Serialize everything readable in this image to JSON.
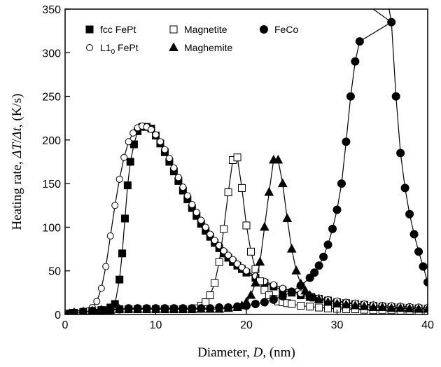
{
  "chart_data": {
    "type": "scatter",
    "xlabel": "Diameter, D, (nm)",
    "ylabel": "Heating rate, ΔT/Δt, (K/s)",
    "xlim": [
      0,
      40
    ],
    "ylim": [
      0,
      350
    ],
    "x_ticks": [
      0,
      10,
      20,
      30,
      40
    ],
    "y_ticks": [
      0,
      50,
      100,
      150,
      200,
      250,
      300,
      350
    ],
    "grid": false,
    "legend_position": "top-left",
    "series": [
      {
        "name": "fcc FePt",
        "marker": "filled-square",
        "points": [
          [
            0.5,
            0.1
          ],
          [
            1,
            0.2
          ],
          [
            1.5,
            0.3
          ],
          [
            2,
            0.5
          ],
          [
            2.5,
            0.8
          ],
          [
            3,
            1.2
          ],
          [
            3.5,
            2
          ],
          [
            4,
            3
          ],
          [
            4.5,
            5
          ],
          [
            5,
            8
          ],
          [
            5.5,
            12
          ],
          [
            6,
            40
          ],
          [
            6.3,
            70
          ],
          [
            6.6,
            110
          ],
          [
            6.9,
            148
          ],
          [
            7.2,
            175
          ],
          [
            7.6,
            195
          ],
          [
            8,
            210
          ],
          [
            8.5,
            215
          ],
          [
            9,
            215
          ],
          [
            9.5,
            213
          ],
          [
            10,
            205
          ],
          [
            10.5,
            196
          ],
          [
            11,
            186
          ],
          [
            11.5,
            175
          ],
          [
            12,
            164
          ],
          [
            12.5,
            153
          ],
          [
            13,
            142
          ],
          [
            13.5,
            132
          ],
          [
            14,
            122
          ],
          [
            14.5,
            113
          ],
          [
            15,
            104
          ],
          [
            15.5,
            96
          ],
          [
            16,
            89
          ],
          [
            16.5,
            82
          ],
          [
            17,
            76
          ],
          [
            17.5,
            70
          ],
          [
            18,
            65
          ],
          [
            18.5,
            60
          ],
          [
            19,
            56
          ],
          [
            19.5,
            52
          ],
          [
            20,
            48
          ],
          [
            21,
            42
          ],
          [
            22,
            36
          ],
          [
            23,
            32
          ],
          [
            24,
            28
          ],
          [
            25,
            25
          ],
          [
            26,
            22
          ],
          [
            27,
            20
          ],
          [
            28,
            18
          ],
          [
            29,
            16
          ],
          [
            30,
            14
          ],
          [
            31,
            13
          ],
          [
            32,
            12
          ],
          [
            33,
            11
          ],
          [
            34,
            10
          ],
          [
            35,
            9
          ],
          [
            36,
            8.5
          ],
          [
            37,
            8
          ],
          [
            38,
            7.5
          ],
          [
            39,
            7
          ],
          [
            40,
            6.5
          ]
        ]
      },
      {
        "name": "L1₀ FePt",
        "marker": "open-circle",
        "points": [
          [
            0.5,
            0.3
          ],
          [
            1,
            0.6
          ],
          [
            1.5,
            1
          ],
          [
            2,
            2
          ],
          [
            2.5,
            4
          ],
          [
            3,
            8
          ],
          [
            3.5,
            15
          ],
          [
            4,
            30
          ],
          [
            4.5,
            55
          ],
          [
            5,
            90
          ],
          [
            5.5,
            125
          ],
          [
            6,
            155
          ],
          [
            6.5,
            180
          ],
          [
            7,
            198
          ],
          [
            7.5,
            208
          ],
          [
            8,
            214
          ],
          [
            8.5,
            216
          ],
          [
            9,
            215
          ],
          [
            9.5,
            212
          ],
          [
            10,
            206
          ],
          [
            10.5,
            198
          ],
          [
            11,
            189
          ],
          [
            11.5,
            179
          ],
          [
            12,
            168
          ],
          [
            12.5,
            157
          ],
          [
            13,
            146
          ],
          [
            13.5,
            136
          ],
          [
            14,
            126
          ],
          [
            14.5,
            117
          ],
          [
            15,
            108
          ],
          [
            15.5,
            100
          ],
          [
            16,
            92
          ],
          [
            16.5,
            85
          ],
          [
            17,
            79
          ],
          [
            17.5,
            73
          ],
          [
            18,
            68
          ],
          [
            18.5,
            63
          ],
          [
            19,
            58
          ],
          [
            19.5,
            54
          ],
          [
            20,
            50
          ],
          [
            21,
            44
          ],
          [
            22,
            38
          ],
          [
            23,
            34
          ],
          [
            24,
            30
          ],
          [
            25,
            27
          ],
          [
            26,
            24
          ],
          [
            27,
            21
          ],
          [
            28,
            19
          ],
          [
            29,
            17
          ],
          [
            30,
            15.5
          ],
          [
            31,
            14
          ],
          [
            32,
            13
          ],
          [
            33,
            12
          ],
          [
            34,
            11
          ],
          [
            35,
            10.5
          ],
          [
            36,
            10
          ],
          [
            37,
            9.5
          ],
          [
            38,
            9
          ],
          [
            39,
            8.5
          ],
          [
            40,
            8
          ]
        ]
      },
      {
        "name": "Magnetite",
        "marker": "open-square",
        "points": [
          [
            0.5,
            1
          ],
          [
            1,
            2
          ],
          [
            2,
            3
          ],
          [
            3,
            4
          ],
          [
            4,
            5
          ],
          [
            5,
            5
          ],
          [
            6,
            6
          ],
          [
            7,
            6
          ],
          [
            8,
            6
          ],
          [
            9,
            6
          ],
          [
            10,
            6
          ],
          [
            11,
            6
          ],
          [
            12,
            6
          ],
          [
            13,
            6
          ],
          [
            14,
            6
          ],
          [
            14.5,
            7
          ],
          [
            15,
            10
          ],
          [
            15.5,
            14
          ],
          [
            16,
            22
          ],
          [
            16.5,
            36
          ],
          [
            17,
            60
          ],
          [
            17.5,
            98
          ],
          [
            18,
            140
          ],
          [
            18.5,
            177
          ],
          [
            19,
            180
          ],
          [
            19.5,
            145
          ],
          [
            20,
            102
          ],
          [
            20.5,
            72
          ],
          [
            21,
            52
          ],
          [
            21.5,
            38
          ],
          [
            22,
            28
          ],
          [
            22.5,
            22
          ],
          [
            23,
            18
          ],
          [
            23.5,
            15
          ],
          [
            24,
            14
          ],
          [
            24.5,
            13
          ],
          [
            25,
            12
          ],
          [
            26,
            10
          ],
          [
            27,
            9
          ],
          [
            28,
            8
          ],
          [
            29,
            7
          ],
          [
            30,
            6.5
          ],
          [
            31,
            6
          ],
          [
            32,
            6
          ],
          [
            33,
            5.5
          ],
          [
            34,
            5
          ],
          [
            35,
            5
          ],
          [
            36,
            5
          ],
          [
            37,
            4.5
          ],
          [
            38,
            4.5
          ],
          [
            39,
            4
          ],
          [
            40,
            4
          ]
        ]
      },
      {
        "name": "Maghemite",
        "marker": "filled-triangle",
        "points": [
          [
            0.5,
            1
          ],
          [
            1,
            2
          ],
          [
            2,
            3
          ],
          [
            3,
            4
          ],
          [
            4,
            5
          ],
          [
            5,
            5
          ],
          [
            6,
            6
          ],
          [
            7,
            6
          ],
          [
            8,
            6
          ],
          [
            9,
            6
          ],
          [
            10,
            6
          ],
          [
            11,
            6
          ],
          [
            12,
            6
          ],
          [
            13,
            6
          ],
          [
            14,
            6
          ],
          [
            15,
            6
          ],
          [
            16,
            6
          ],
          [
            17,
            6
          ],
          [
            18,
            7
          ],
          [
            19,
            8
          ],
          [
            19.5,
            10
          ],
          [
            20,
            14
          ],
          [
            20.5,
            22
          ],
          [
            21,
            36
          ],
          [
            21.5,
            60
          ],
          [
            22,
            100
          ],
          [
            22.5,
            140
          ],
          [
            23,
            177
          ],
          [
            23.5,
            177
          ],
          [
            24,
            150
          ],
          [
            24.5,
            110
          ],
          [
            25,
            75
          ],
          [
            25.5,
            50
          ],
          [
            26,
            35
          ],
          [
            26.5,
            27
          ],
          [
            27,
            22
          ],
          [
            27.5,
            19
          ],
          [
            28,
            17
          ],
          [
            29,
            14
          ],
          [
            30,
            12
          ],
          [
            31,
            11
          ],
          [
            32,
            10
          ],
          [
            33,
            9
          ],
          [
            34,
            8
          ],
          [
            35,
            8
          ],
          [
            36,
            7
          ],
          [
            37,
            7
          ],
          [
            38,
            6.5
          ],
          [
            39,
            6
          ],
          [
            40,
            6
          ]
        ]
      },
      {
        "name": "FeCo",
        "marker": "filled-circle",
        "points": [
          [
            0.5,
            1
          ],
          [
            1,
            2
          ],
          [
            2,
            3
          ],
          [
            3,
            4
          ],
          [
            4,
            5
          ],
          [
            5,
            6
          ],
          [
            6,
            6
          ],
          [
            7,
            7
          ],
          [
            8,
            7
          ],
          [
            9,
            7
          ],
          [
            10,
            7
          ],
          [
            11,
            7
          ],
          [
            12,
            7
          ],
          [
            13,
            7
          ],
          [
            14,
            7
          ],
          [
            15,
            7
          ],
          [
            16,
            7
          ],
          [
            17,
            8
          ],
          [
            18,
            8
          ],
          [
            19,
            9
          ],
          [
            20,
            10
          ],
          [
            21,
            12
          ],
          [
            22,
            14
          ],
          [
            23,
            17
          ],
          [
            24,
            21
          ],
          [
            25,
            26
          ],
          [
            26,
            33
          ],
          [
            27,
            42
          ],
          [
            27.5,
            48
          ],
          [
            28,
            56
          ],
          [
            28.5,
            66
          ],
          [
            29,
            80
          ],
          [
            29.5,
            98
          ],
          [
            30,
            120
          ],
          [
            30.5,
            150
          ],
          [
            31,
            198
          ],
          [
            31.5,
            250
          ],
          [
            32,
            290
          ],
          [
            32.5,
            313
          ],
          [
            36,
            335
          ],
          [
            36.5,
            250
          ],
          [
            37,
            185
          ],
          [
            37.5,
            145
          ],
          [
            38,
            115
          ],
          [
            38.5,
            92
          ],
          [
            39,
            72
          ],
          [
            39.5,
            55
          ],
          [
            40,
            37
          ]
        ]
      }
    ]
  }
}
